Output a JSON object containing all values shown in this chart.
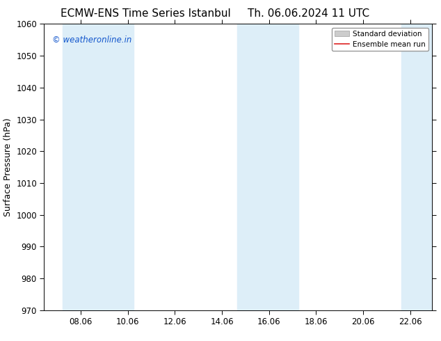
{
  "title_left": "ECMW-ENS Time Series Istanbul",
  "title_right": "Th. 06.06.2024 11 UTC",
  "ylabel": "Surface Pressure (hPa)",
  "xlim": [
    6.5,
    23.0
  ],
  "ylim": [
    970,
    1060
  ],
  "yticks": [
    970,
    980,
    990,
    1000,
    1010,
    1020,
    1030,
    1040,
    1050,
    1060
  ],
  "xticks": [
    8.06,
    10.06,
    12.06,
    14.06,
    16.06,
    18.06,
    20.06,
    22.06
  ],
  "xtick_labels": [
    "08.06",
    "10.06",
    "12.06",
    "14.06",
    "16.06",
    "18.06",
    "20.06",
    "22.06"
  ],
  "bg_color": "#ffffff",
  "plot_bg_color": "#ffffff",
  "shaded_bands": [
    {
      "x_start": 7.3,
      "x_end": 10.3
    },
    {
      "x_start": 14.7,
      "x_end": 17.3
    },
    {
      "x_start": 21.7,
      "x_end": 23.1
    }
  ],
  "shaded_color": "#ddeef8",
  "watermark_text": "© weatheronline.in",
  "watermark_color": "#1155cc",
  "watermark_fontsize": 8.5,
  "ensemble_mean_color": "#dd2222",
  "std_dev_color": "#cccccc",
  "std_dev_edge_color": "#aaaaaa",
  "legend_std_label": "Standard deviation",
  "legend_mean_label": "Ensemble mean run",
  "title_fontsize": 11,
  "ylabel_fontsize": 9,
  "tick_fontsize": 8.5,
  "legend_fontsize": 7.5
}
